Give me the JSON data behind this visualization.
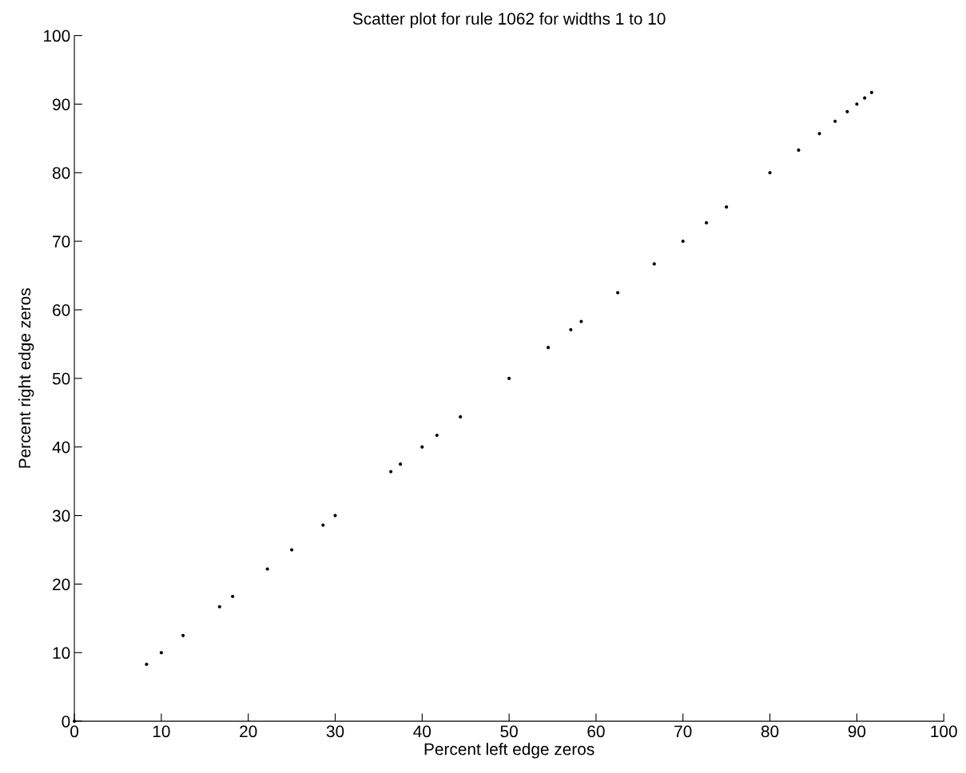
{
  "chart_data": {
    "type": "scatter",
    "title": "Scatter plot for rule 1062 for widths 1 to 10",
    "xlabel": "Percent left edge zeros",
    "ylabel": "Percent right edge zeros",
    "x": [
      0,
      8.3,
      10,
      12.5,
      16.7,
      18.2,
      22.2,
      25,
      28.6,
      30,
      36.4,
      37.5,
      40,
      41.7,
      44.4,
      50,
      54.5,
      57.1,
      58.3,
      62.5,
      66.7,
      70,
      72.7,
      75,
      80,
      83.3,
      85.7,
      87.5,
      88.9,
      90,
      90.9,
      91.7
    ],
    "values": [
      0,
      8.3,
      10,
      12.5,
      16.7,
      18.2,
      22.2,
      25,
      28.6,
      30,
      36.4,
      37.5,
      40,
      41.7,
      44.4,
      50,
      54.5,
      57.1,
      58.3,
      62.5,
      66.7,
      70,
      72.7,
      75,
      80,
      83.3,
      85.7,
      87.5,
      88.9,
      90,
      90.9,
      91.7
    ],
    "color": "#000000",
    "marker": "circle",
    "xlim": [
      0,
      100
    ],
    "ylim": [
      0,
      100
    ],
    "xticks": [
      0,
      10,
      20,
      30,
      40,
      50,
      60,
      70,
      80,
      90,
      100
    ],
    "yticks": [
      0,
      10,
      20,
      30,
      40,
      50,
      60,
      70,
      80,
      90,
      100
    ],
    "grid": false
  }
}
